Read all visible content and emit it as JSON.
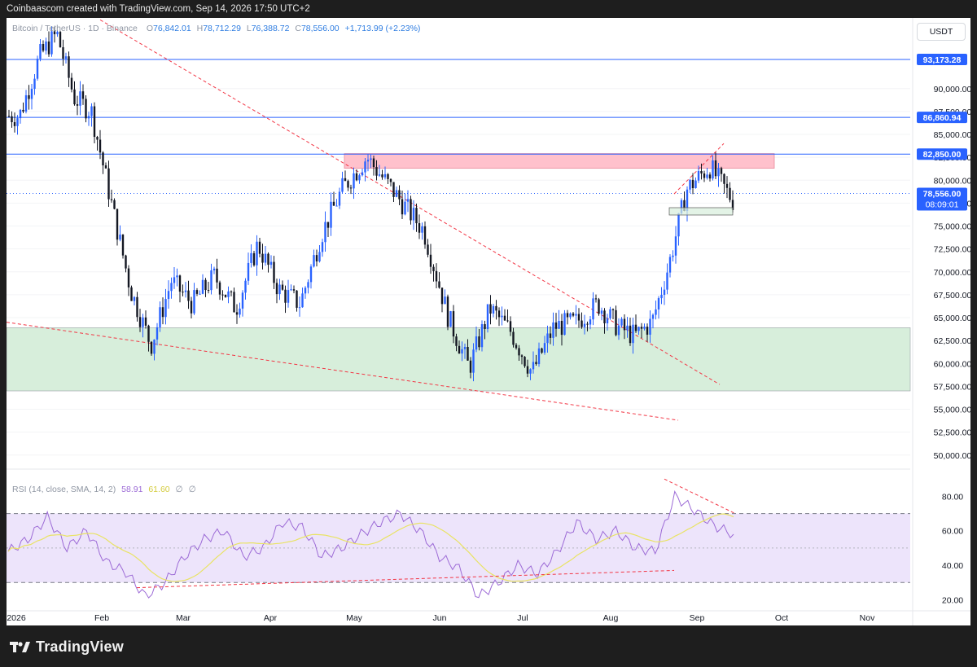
{
  "header": {
    "caption": "Coinbaascom created with TradingView.com, Sep 14, 2026 17:50 UTC+2"
  },
  "legend": {
    "symbol": "Bitcoin / TetherUS · 1D · Binance",
    "open_label": "O",
    "open": "76,842.01",
    "high_label": "H",
    "high": "78,712.29",
    "low_label": "L",
    "low": "76,388.72",
    "close_label": "C",
    "close": "78,556.00",
    "change": "+1,713.99 (+2.23%)"
  },
  "rsi_legend": {
    "label": "RSI (14, close, SMA, 14, 2)",
    "rsi": "58.91",
    "sma": "61.60",
    "extra1": "∅",
    "extra2": "∅"
  },
  "currency": "USDT",
  "footer": {
    "brand": "TradingView",
    "logo_icon": "tradingview-logo-icon"
  },
  "colors": {
    "up": "#2962ff",
    "down": "#131722",
    "level": "#2962ff",
    "resistance_zone": "#ffc1cc",
    "support_zone": "#d7eedb",
    "trendline": "#f23645",
    "rsi": "#9c6ad6",
    "rsi_sma": "#e9e364"
  },
  "chart_data": {
    "type": "candlestick",
    "price_axis": {
      "ticks": [
        "90,000.00",
        "87,500.00",
        "85,000.00",
        "82,500.00",
        "80,000.00",
        "77,500.00",
        "75,000.00",
        "72,500.00",
        "70,000.00",
        "67,500.00",
        "65,000.00",
        "62,500.00",
        "60,000.00",
        "57,500.00",
        "55,000.00",
        "52,500.00",
        "50,000.00"
      ],
      "ylim": [
        49000,
        97000
      ]
    },
    "time_axis": {
      "ticks": [
        "2026",
        "Feb",
        "Mar",
        "Apr",
        "May",
        "Jun",
        "Jul",
        "Aug",
        "Sep",
        "Oct",
        "Nov"
      ]
    },
    "horizontal_levels": [
      {
        "label": "93,173.28",
        "value": 93173.28
      },
      {
        "label": "86,860.94",
        "value": 86860.94
      },
      {
        "label": "82,850.00",
        "value": 82850
      }
    ],
    "current_price": {
      "label": "78,556.00",
      "value": 78556,
      "countdown": "08:09:01"
    },
    "resistance_zone": {
      "from": "May",
      "to": "Sep",
      "low": 81300,
      "high": 82900
    },
    "support_zone": {
      "low": 57000,
      "high": 63900
    },
    "consolidation_box": {
      "low": 76200,
      "high": 77000
    },
    "trendlines": [
      {
        "from": [
          "Feb",
          97500
        ],
        "to": [
          "Sep",
          57700
        ]
      },
      {
        "from": [
          "2026",
          64500
        ],
        "to": [
          "Aug",
          53800
        ]
      },
      {
        "from": [
          "Aug",
          78500
        ],
        "to": [
          "Sep",
          84000
        ]
      }
    ],
    "close_path": [
      {
        "t": "2026",
        "c": 87000
      },
      {
        "t": "Jan",
        "c": 93500
      },
      {
        "t": "Jan",
        "c": 96000
      },
      {
        "t": "Jan",
        "c": 89000
      },
      {
        "t": "Jan",
        "c": 87500
      },
      {
        "t": "Feb",
        "c": 78000
      },
      {
        "t": "Feb",
        "c": 68000
      },
      {
        "t": "Feb",
        "c": 62000
      },
      {
        "t": "Feb",
        "c": 69000
      },
      {
        "t": "Mar",
        "c": 66500
      },
      {
        "t": "Mar",
        "c": 69500
      },
      {
        "t": "Mar",
        "c": 66000
      },
      {
        "t": "Mar",
        "c": 73000
      },
      {
        "t": "Apr",
        "c": 68000
      },
      {
        "t": "Apr",
        "c": 66500
      },
      {
        "t": "Apr",
        "c": 74000
      },
      {
        "t": "Apr",
        "c": 79000
      },
      {
        "t": "May",
        "c": 82500
      },
      {
        "t": "May",
        "c": 78500
      },
      {
        "t": "May",
        "c": 74500
      },
      {
        "t": "Jun",
        "c": 65000
      },
      {
        "t": "Jun",
        "c": 59500
      },
      {
        "t": "Jun",
        "c": 66000
      },
      {
        "t": "Jun",
        "c": 63500
      },
      {
        "t": "Jul",
        "c": 59000
      },
      {
        "t": "Jul",
        "c": 64000
      },
      {
        "t": "Jul",
        "c": 64500
      },
      {
        "t": "Jul",
        "c": 66500
      },
      {
        "t": "Aug",
        "c": 64000
      },
      {
        "t": "Aug",
        "c": 63000
      },
      {
        "t": "Aug",
        "c": 64500
      },
      {
        "t": "Aug",
        "c": 71000
      },
      {
        "t": "Aug",
        "c": 79000
      },
      {
        "t": "Sep",
        "c": 81500
      },
      {
        "t": "Sep",
        "c": 77000
      },
      {
        "t": "Sep",
        "c": 78556
      }
    ],
    "rsi": {
      "ticks": [
        "80.00",
        "60.00",
        "40.00",
        "20.00"
      ],
      "ylim": [
        15,
        92
      ],
      "overbought": 70,
      "middle": 50,
      "oversold": 30,
      "values": [
        48,
        55,
        68,
        50,
        60,
        42,
        36,
        22,
        30,
        45,
        55,
        60,
        45,
        50,
        65,
        62,
        45,
        50,
        58,
        65,
        70,
        60,
        45,
        38,
        22,
        30,
        40,
        35,
        48,
        65,
        55,
        60,
        50,
        48,
        80,
        72,
        63,
        58
      ]
    }
  }
}
